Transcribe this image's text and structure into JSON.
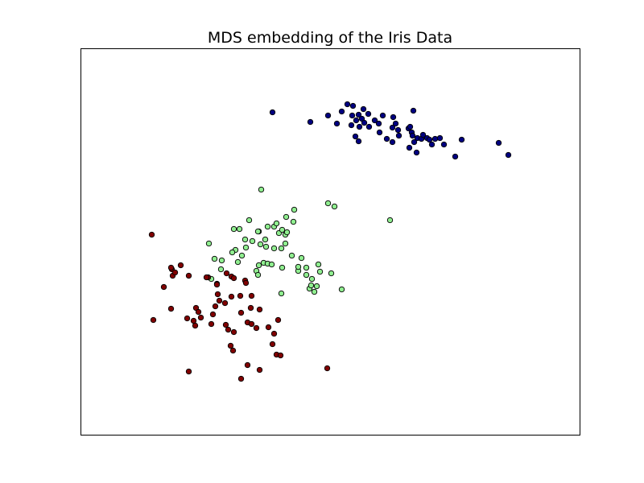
{
  "chart_data": {
    "type": "scatter",
    "title": "MDS embedding of the Iris Data",
    "xlabel": "",
    "ylabel": "",
    "xlim": [
      0,
      620
    ],
    "ylim": [
      0,
      480
    ],
    "ticks": "none",
    "grid": false,
    "legend": "none",
    "series": [
      {
        "color": "#000080",
        "points": [
          [
            238,
            401
          ],
          [
            285,
            389
          ],
          [
            307,
            397
          ],
          [
            318,
            387
          ],
          [
            324,
            402
          ],
          [
            331,
            411
          ],
          [
            338,
            409
          ],
          [
            336,
            385
          ],
          [
            337,
            397
          ],
          [
            342,
            391
          ],
          [
            346,
            383
          ],
          [
            345,
            398
          ],
          [
            341,
            371
          ],
          [
            345,
            365
          ],
          [
            351,
            405
          ],
          [
            349,
            393
          ],
          [
            352,
            388
          ],
          [
            357,
            399
          ],
          [
            358,
            383
          ],
          [
            365,
            391
          ],
          [
            370,
            387
          ],
          [
            371,
            376
          ],
          [
            375,
            397
          ],
          [
            380,
            368
          ],
          [
            387,
            382
          ],
          [
            388,
            395
          ],
          [
            387,
            364
          ],
          [
            391,
            387
          ],
          [
            395,
            372
          ],
          [
            394,
            379
          ],
          [
            407,
            381
          ],
          [
            409,
            383
          ],
          [
            411,
            376
          ],
          [
            412,
            372
          ],
          [
            413,
            403
          ],
          [
            414,
            364
          ],
          [
            408,
            357
          ],
          [
            418,
            369
          ],
          [
            423,
            368
          ],
          [
            417,
            351
          ],
          [
            425,
            373
          ],
          [
            430,
            369
          ],
          [
            433,
            367
          ],
          [
            440,
            368
          ],
          [
            436,
            361
          ],
          [
            446,
            369
          ],
          [
            451,
            361
          ],
          [
            465,
            346
          ],
          [
            473,
            367
          ],
          [
            519,
            363
          ],
          [
            531,
            348
          ]
        ]
      },
      {
        "color": "#90ee90",
        "points": [
          [
            224,
            305
          ],
          [
            307,
            288
          ],
          [
            315,
            284
          ],
          [
            384,
            267
          ],
          [
            255,
            271
          ],
          [
            264,
            265
          ],
          [
            254,
            249
          ],
          [
            254,
            238
          ],
          [
            265,
            280
          ],
          [
            209,
            267
          ],
          [
            221,
            253
          ],
          [
            230,
            234
          ],
          [
            240,
            232
          ],
          [
            249,
            232
          ],
          [
            246,
            251
          ],
          [
            240,
            259
          ],
          [
            250,
            255
          ],
          [
            256,
            252
          ],
          [
            204,
            243
          ],
          [
            192,
            230
          ],
          [
            190,
            256
          ],
          [
            197,
            256
          ],
          [
            229,
            243
          ],
          [
            213,
            241
          ],
          [
            205,
            233
          ],
          [
            195,
            215
          ],
          [
            188,
            227
          ],
          [
            175,
            217
          ],
          [
            159,
            238
          ],
          [
            166,
            219
          ],
          [
            174,
            206
          ],
          [
            162,
            194
          ],
          [
            200,
            223
          ],
          [
            223,
            237
          ],
          [
            243,
            263
          ],
          [
            232,
            259
          ],
          [
            220,
            253
          ],
          [
            221,
            211
          ],
          [
            227,
            214
          ],
          [
            232,
            213
          ],
          [
            218,
            204
          ],
          [
            220,
            199
          ],
          [
            237,
            212
          ],
          [
            250,
            208
          ],
          [
            262,
            223
          ],
          [
            270,
            204
          ],
          [
            274,
            220
          ],
          [
            280,
            208
          ],
          [
            270,
            209
          ],
          [
            284,
            182
          ],
          [
            280,
            199
          ],
          [
            287,
            194
          ],
          [
            286,
            186
          ],
          [
            290,
            178
          ],
          [
            297,
            203
          ],
          [
            293,
            185
          ],
          [
            295,
            212
          ],
          [
            311,
            201
          ],
          [
            324,
            181
          ],
          [
            249,
            176
          ]
        ]
      },
      {
        "color": "#800000",
        "points": [
          [
            88,
            249
          ],
          [
            114,
            198
          ],
          [
            124,
            211
          ],
          [
            113,
            206
          ],
          [
            112,
            208
          ],
          [
            103,
            184
          ],
          [
            134,
            198
          ],
          [
            158,
            196
          ],
          [
            169,
            188
          ],
          [
            181,
            201
          ],
          [
            187,
            197
          ],
          [
            190,
            195
          ],
          [
            204,
            192
          ],
          [
            205,
            189
          ],
          [
            156,
            196
          ],
          [
            169,
            187
          ],
          [
            170,
            175
          ],
          [
            172,
            167
          ],
          [
            179,
            164
          ],
          [
            187,
            172
          ],
          [
            198,
            173
          ],
          [
            212,
            173
          ],
          [
            222,
            156
          ],
          [
            211,
            158
          ],
          [
            199,
            152
          ],
          [
            207,
            140
          ],
          [
            212,
            138
          ],
          [
            218,
            133
          ],
          [
            190,
            128
          ],
          [
            186,
            111
          ],
          [
            189,
            105
          ],
          [
            183,
            131
          ],
          [
            180,
            137
          ],
          [
            162,
            138
          ],
          [
            164,
            150
          ],
          [
            167,
            160
          ],
          [
            143,
            158
          ],
          [
            146,
            153
          ],
          [
            149,
            146
          ],
          [
            140,
            142
          ],
          [
            142,
            136
          ],
          [
            132,
            145
          ],
          [
            117,
            202
          ],
          [
            112,
            157
          ],
          [
            90,
            143
          ],
          [
            134,
            79
          ],
          [
            207,
            87
          ],
          [
            222,
            81
          ],
          [
            199,
            70
          ],
          [
            238,
            113
          ],
          [
            240,
            126
          ],
          [
            245,
            143
          ],
          [
            243,
            100
          ],
          [
            248,
            99
          ],
          [
            306,
            83
          ],
          [
            233,
            134
          ]
        ]
      }
    ]
  }
}
